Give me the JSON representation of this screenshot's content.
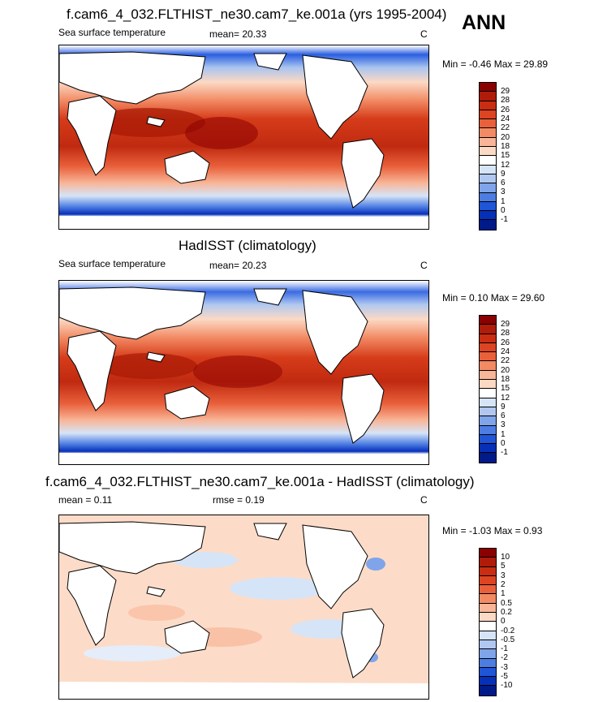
{
  "header": {
    "season": "ANN"
  },
  "panels": [
    {
      "title": "f.cam6_4_032.FLTHIST_ne30.cam7_ke.001a (yrs 1995-2004)",
      "left_text": "Sea surface temperature",
      "mid_text": "mean=  20.33",
      "units": "C",
      "minmax": "Min =  -0.46 Max =  29.89",
      "colorbar_labels": [
        "29",
        "28",
        "26",
        "24",
        "22",
        "20",
        "18",
        "15",
        "12",
        "9",
        "6",
        "3",
        "1",
        "0",
        "-1"
      ],
      "colorbar_colors": [
        "#8b0000",
        "#b01c0a",
        "#c92d12",
        "#dd4422",
        "#e9603b",
        "#f28a64",
        "#f8b597",
        "#fcd9c4",
        "#ffffff",
        "#d6e4f7",
        "#b0c8f0",
        "#7fa4ea",
        "#4d7de3",
        "#1f55d6",
        "#0730b8",
        "#001a8a"
      ]
    },
    {
      "title": "HadISST (climatology)",
      "left_text": "Sea surface temperature",
      "mid_text": "mean=  20.23",
      "units": "C",
      "minmax": "Min =   0.10 Max =  29.60",
      "colorbar_labels": [
        "29",
        "28",
        "26",
        "24",
        "22",
        "20",
        "18",
        "15",
        "12",
        "9",
        "6",
        "3",
        "1",
        "0",
        "-1"
      ],
      "colorbar_colors": [
        "#8b0000",
        "#b01c0a",
        "#c92d12",
        "#dd4422",
        "#e9603b",
        "#f28a64",
        "#f8b597",
        "#fcd9c4",
        "#ffffff",
        "#d6e4f7",
        "#b0c8f0",
        "#7fa4ea",
        "#4d7de3",
        "#1f55d6",
        "#0730b8",
        "#001a8a"
      ]
    },
    {
      "title": "f.cam6_4_032.FLTHIST_ne30.cam7_ke.001a - HadISST (climatology)",
      "left_text": "mean =   0.11",
      "mid_text": "rmse =   0.19",
      "units": "C",
      "minmax": "Min =  -1.03 Max =   0.93",
      "colorbar_labels": [
        "10",
        "5",
        "3",
        "2",
        "1",
        "0.5",
        "0.2",
        "0",
        "-0.2",
        "-0.5",
        "-1",
        "-2",
        "-3",
        "-5",
        "-10"
      ],
      "colorbar_colors": [
        "#8b0000",
        "#b01c0a",
        "#c92d12",
        "#dd4422",
        "#e9603b",
        "#f28a64",
        "#f8b597",
        "#fcd9c4",
        "#ffffff",
        "#d6e4f7",
        "#b0c8f0",
        "#7fa4ea",
        "#4d7de3",
        "#1f55d6",
        "#0730b8",
        "#001a8a"
      ]
    }
  ]
}
